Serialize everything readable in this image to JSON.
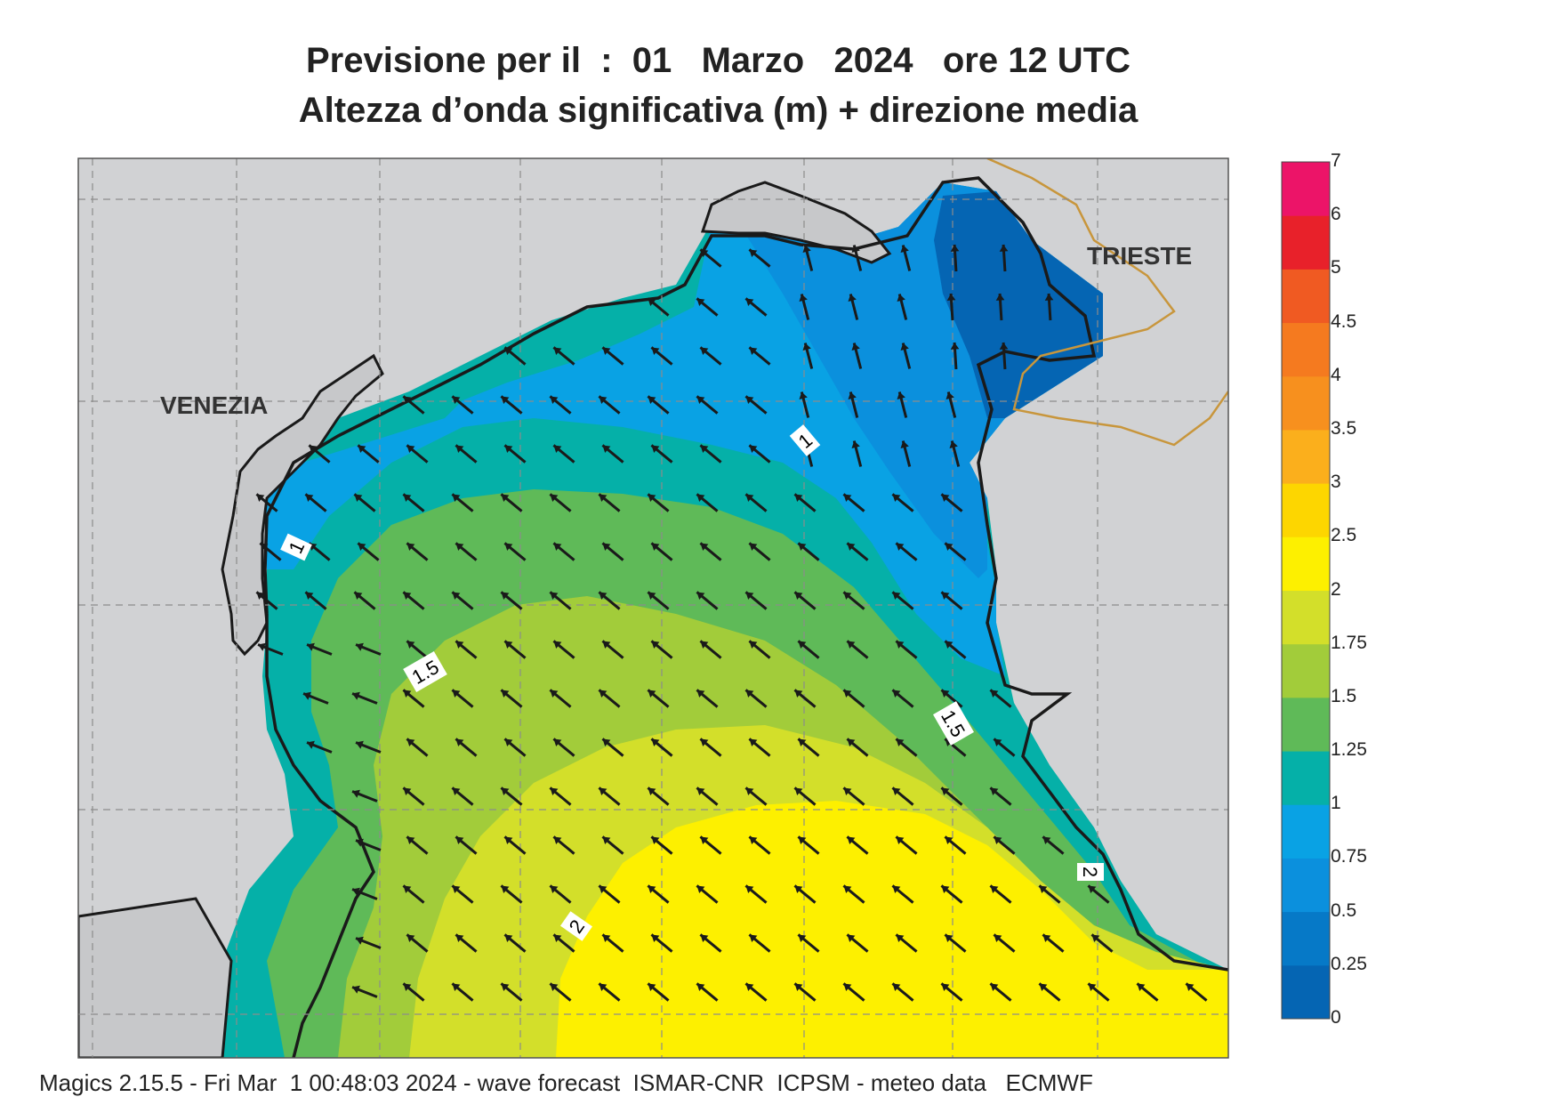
{
  "title": {
    "line1": "Previsione per il  :  01   Marzo   2024   ore 12 UTC",
    "line2": "Altezza d’onda significativa (m) + direzione media"
  },
  "footer": "Magics 2.15.5 - Fri Mar  1 00:48:03 2024 - wave forecast  ISMAR-CNR  ICPSM - meteo data   ECMWF",
  "places": {
    "venezia": "VENEZIA",
    "trieste": "TRIESTE"
  },
  "colorbar": {
    "labels": [
      "0",
      "0.25",
      "0.5",
      "0.75",
      "1",
      "1.25",
      "1.5",
      "1.75",
      "2",
      "2.5",
      "3",
      "3.5",
      "4",
      "4.5",
      "5",
      "6",
      "7"
    ],
    "colors": [
      "#0565b3",
      "#0679c7",
      "#0b90dd",
      "#09a2e4",
      "#05b0a8",
      "#5fba58",
      "#a2cc3a",
      "#d3df2a",
      "#fdf000",
      "#fdd600",
      "#fbaf1c",
      "#f7901e",
      "#f57a1f",
      "#f05a22",
      "#e8212a",
      "#ec1468"
    ]
  },
  "contour_labels": {
    "c1a": "1",
    "c1b": "1",
    "c15a": "1.5",
    "c15b": "1.5",
    "c2": "2",
    "c2b": "2"
  },
  "colors": {
    "land": "#d1d2d4",
    "ocean_frame": "#cfd0d2",
    "arrow": "#1a1a1a",
    "coast": "#1a1a1a",
    "border": "#c8963c"
  },
  "wave_direction": "NW"
}
